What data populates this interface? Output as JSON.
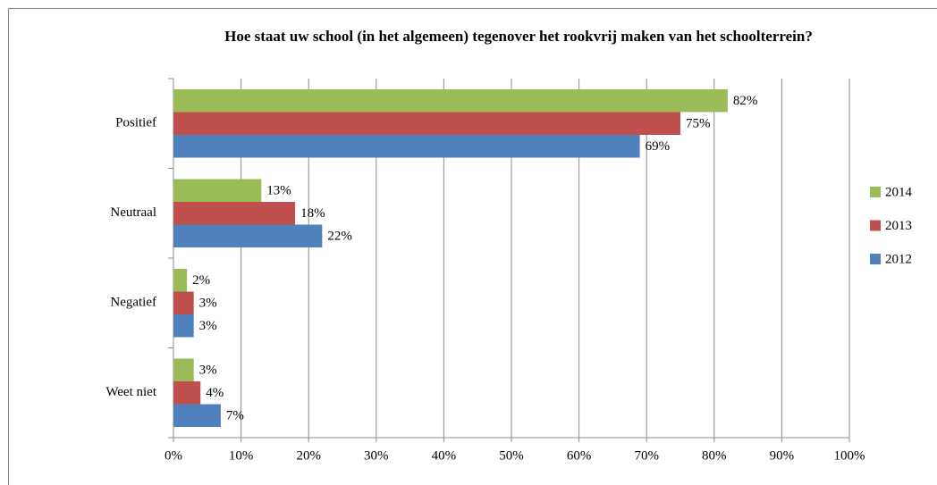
{
  "chart_data": {
    "type": "hbar",
    "title": "Hoe staat uw school (in het algemeen) tegenover het rookvrij maken van het schoolterrein?",
    "categories": [
      "Positief",
      "Neutraal",
      "Negatief",
      "Weet niet"
    ],
    "series": [
      {
        "name": "2014",
        "color": "#9bbb59",
        "values": [
          82,
          13,
          2,
          3
        ],
        "value_labels": [
          "82%",
          "13%",
          "2%",
          "3%"
        ]
      },
      {
        "name": "2013",
        "color": "#c0504d",
        "values": [
          75,
          18,
          3,
          4
        ],
        "value_labels": [
          "75%",
          "18%",
          "3%",
          "4%"
        ]
      },
      {
        "name": "2012",
        "color": "#4f81bd",
        "values": [
          69,
          22,
          3,
          7
        ],
        "value_labels": [
          "69%",
          "22%",
          "3%",
          "7%"
        ]
      }
    ],
    "xlim": [
      0,
      100
    ],
    "xticks": [
      {
        "value": 0,
        "label": "0%"
      },
      {
        "value": 10,
        "label": "10%"
      },
      {
        "value": 20,
        "label": "20%"
      },
      {
        "value": 30,
        "label": "30%"
      },
      {
        "value": 40,
        "label": "40%"
      },
      {
        "value": 50,
        "label": "50%"
      },
      {
        "value": 60,
        "label": "60%"
      },
      {
        "value": 70,
        "label": "70%"
      },
      {
        "value": 80,
        "label": "80%"
      },
      {
        "value": 90,
        "label": "90%"
      },
      {
        "value": 100,
        "label": "100%"
      }
    ],
    "grid": true,
    "legend": "right"
  }
}
